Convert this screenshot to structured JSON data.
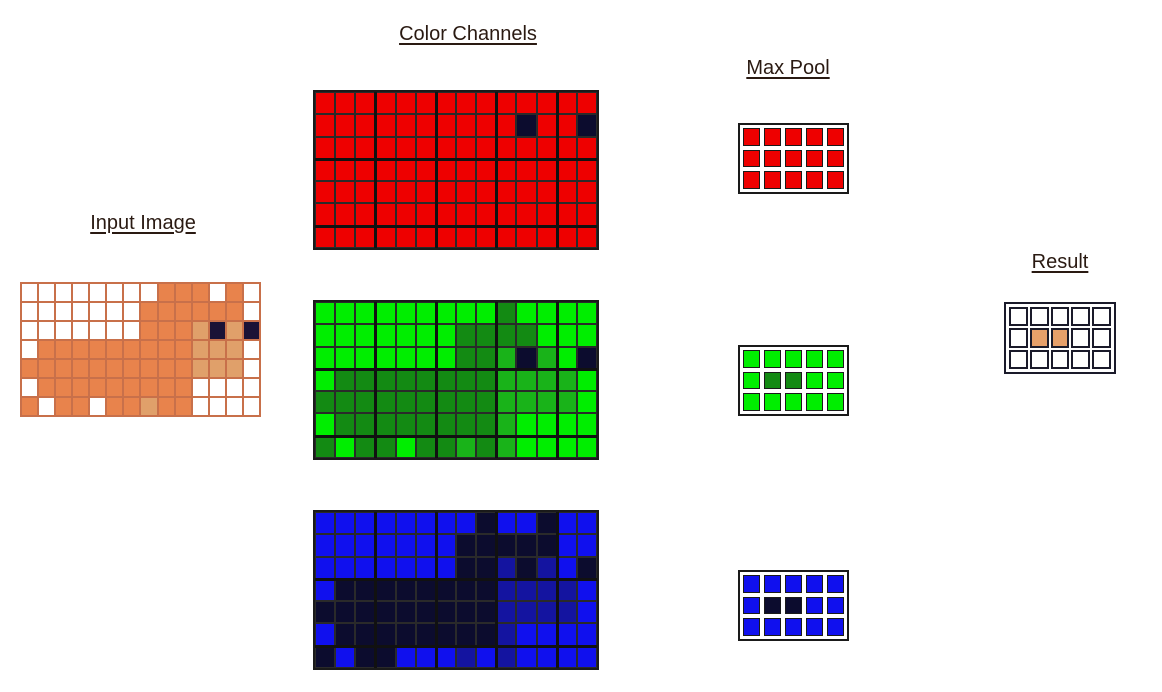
{
  "labels": {
    "input": "Input Image",
    "channels": "Color Channels",
    "maxpool": "Max Pool",
    "result": "Result"
  },
  "colors": {
    "white": "#ffffff",
    "orange": "#e8834c",
    "tan": "#e0a06a",
    "dark": "#1a1236",
    "red": "#ee0000",
    "bright_green": "#00ee00",
    "dark_green": "#138a13",
    "mid_green": "#19b319",
    "blue": "#1010ee",
    "dark_navy": "#0c0c2e",
    "mid_blue": "#1414a0",
    "result_fill": "#e6a06a"
  },
  "input_image": {
    "rows": 7,
    "cols": 14,
    "legend": {
      "W": "white",
      "O": "orange",
      "T": "tan",
      "D": "dark"
    },
    "grid": [
      "WWWWWWWWOOOWOW",
      "WWWWWWWOOOOOOW",
      "WWWWWWWOOOTDTD",
      "WOOOOOOOOOTTTW",
      "OOOOOOOOOOTTTW",
      "WOOOOOOOOOWWWW",
      "OWOOWOOTOOWWWW"
    ]
  },
  "channels": [
    {
      "name": "red",
      "legend": {
        "R": "red",
        "D": "dark_navy"
      },
      "grid": [
        "RRRRRRRRRRRRRR",
        "RRRRRRRRRRDRRD",
        "RRRRRRRRRRRRRR",
        "RRRRRRRRRRRRRR",
        "RRRRRRRRRRRRRR",
        "RRRRRRRRRRRRRR",
        "RRRRRRRRRRRRRR"
      ]
    },
    {
      "name": "green",
      "legend": {
        "G": "bright_green",
        "K": "dark_green",
        "M": "mid_green",
        "D": "dark_navy"
      },
      "grid": [
        "GGGGGGGGGKGGGG",
        "GGGGGGGKKKKGGG",
        "GGGGGGGKKMDMGD",
        "GKKKKKKKKMMMMG",
        "KKKKKKKKKMMMMG",
        "GKKKKKKKKMGGGG",
        "KGKKGKKMKMGGGG"
      ]
    },
    {
      "name": "blue",
      "legend": {
        "B": "blue",
        "N": "dark_navy",
        "M": "mid_blue"
      },
      "grid": [
        "BBBBBBBBNBBNBB",
        "BBBBBBBNNNNNBB",
        "BBBBBBBNNMNMBN",
        "BNNNNNNNNMMMMB",
        "NNNNNNNNNMMMMB",
        "BNNNNNNNNMBBBB",
        "NBNNBBBMBMBBBB"
      ]
    }
  ],
  "max_pool": [
    {
      "name": "red",
      "legend": {
        "R": "red"
      },
      "grid": [
        "RRRRR",
        "RRRRR",
        "RRRRR"
      ]
    },
    {
      "name": "green",
      "legend": {
        "G": "bright_green",
        "K": "dark_green"
      },
      "grid": [
        "GGGGG",
        "GKKGG",
        "GGGGG"
      ]
    },
    {
      "name": "blue",
      "legend": {
        "B": "blue",
        "N": "dark_navy"
      },
      "grid": [
        "BBBBB",
        "BNNBB",
        "BBBBB"
      ]
    }
  ],
  "result": {
    "legend": {
      "W": "white",
      "O": "result_fill"
    },
    "grid": [
      "WWWWW",
      "WOOWW",
      "WWWWW"
    ]
  }
}
